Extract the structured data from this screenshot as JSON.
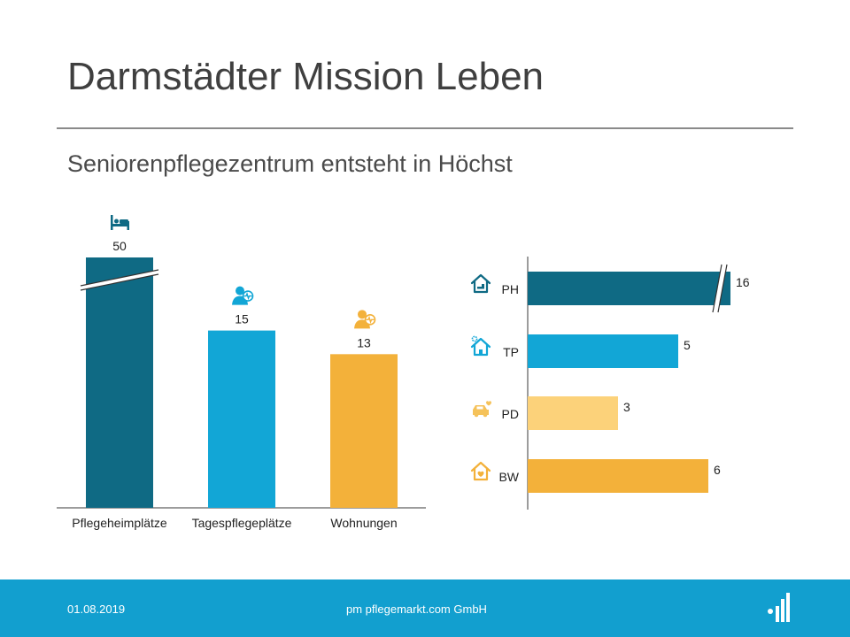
{
  "slide": {
    "title": "Darmstädter Mission Leben",
    "subtitle": "Seniorenpflegezentrum  entsteht in Höchst"
  },
  "chart_data": [
    {
      "type": "bar",
      "orientation": "vertical",
      "categories": [
        "Pflegeheimplätze",
        "Tagespflegeplätze",
        "Wohnungen"
      ],
      "values": [
        50,
        15,
        13
      ],
      "broken_axis": [
        true,
        false,
        false
      ],
      "colors": [
        "#0f6a84",
        "#12a6d6",
        "#f3b13a"
      ],
      "icons": [
        "bed-icon",
        "person-heartbeat-icon",
        "person-heartbeat-icon"
      ],
      "xlabel": "",
      "ylabel": ""
    },
    {
      "type": "bar",
      "orientation": "horizontal",
      "categories": [
        "PH",
        "TP",
        "PD",
        "BW"
      ],
      "values": [
        16,
        5,
        3,
        6
      ],
      "broken_axis": [
        true,
        false,
        false,
        false
      ],
      "colors": [
        "#0f6a84",
        "#12a6d6",
        "#fcd27a",
        "#f3b13a"
      ],
      "icons": [
        "house-bed-icon",
        "house-gear-icon",
        "car-heart-icon",
        "house-heart-icon"
      ],
      "xlabel": "",
      "ylabel": ""
    }
  ],
  "footer": {
    "date": "01.08.2019",
    "company": "pm pflegemarkt.com GmbH",
    "logo_icon": "pflegemarkt-logo-icon"
  }
}
